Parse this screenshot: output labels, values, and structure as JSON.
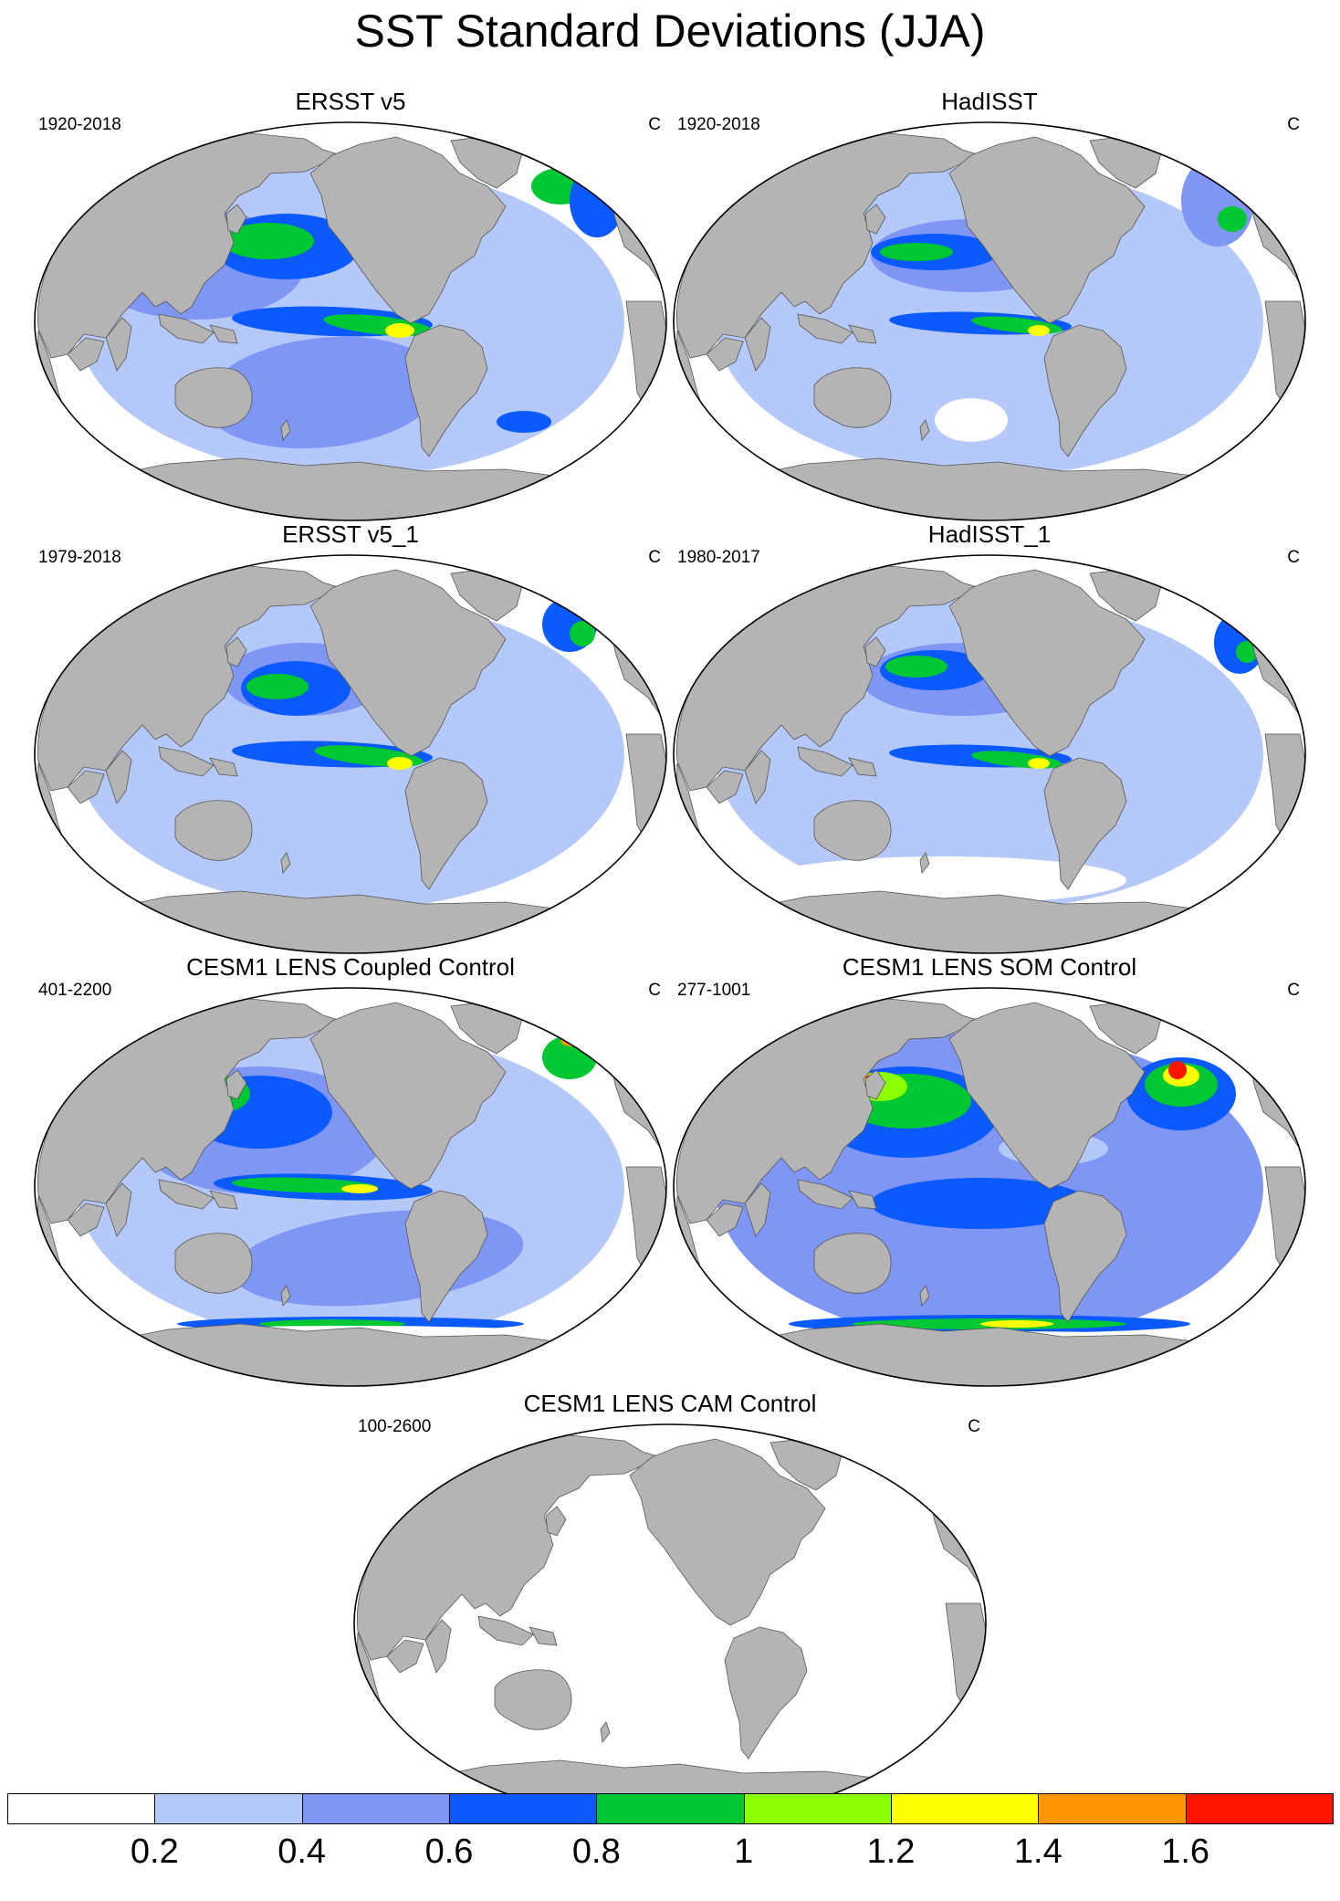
{
  "title": "SST Standard Deviations (JJA)",
  "panels": [
    {
      "name": "ERSST v5",
      "period": "1920-2018",
      "unit": "C",
      "style": "obs_full"
    },
    {
      "name": "HadISST",
      "period": "1920-2018",
      "unit": "C",
      "style": "obs_had"
    },
    {
      "name": "ERSST v5_1",
      "period": "1979-2018",
      "unit": "C",
      "style": "obs_recent"
    },
    {
      "name": "HadISST_1",
      "period": "1980-2017",
      "unit": "C",
      "style": "obs_had_recent"
    },
    {
      "name": "CESM1 LENS Coupled Control",
      "period": "401-2200",
      "unit": "C",
      "style": "coupled"
    },
    {
      "name": "CESM1 LENS SOM Control",
      "period": "277-1001",
      "unit": "C",
      "style": "som"
    },
    {
      "name": "CESM1 LENS CAM Control",
      "period": "100-2600",
      "unit": "C",
      "style": "cam"
    }
  ],
  "colorbar": {
    "colors": [
      "#ffffff",
      "#b4c8fa",
      "#7f96f5",
      "#0a5aff",
      "#00c832",
      "#8cff00",
      "#ffff00",
      "#ff9600",
      "#ff1400"
    ],
    "labels": [
      "0.2",
      "0.4",
      "0.6",
      "0.8",
      "1",
      "1.2",
      "1.4",
      "1.6"
    ]
  },
  "colors": {
    "land": "#b4b4b4",
    "ocean_low": "#ffffff"
  }
}
